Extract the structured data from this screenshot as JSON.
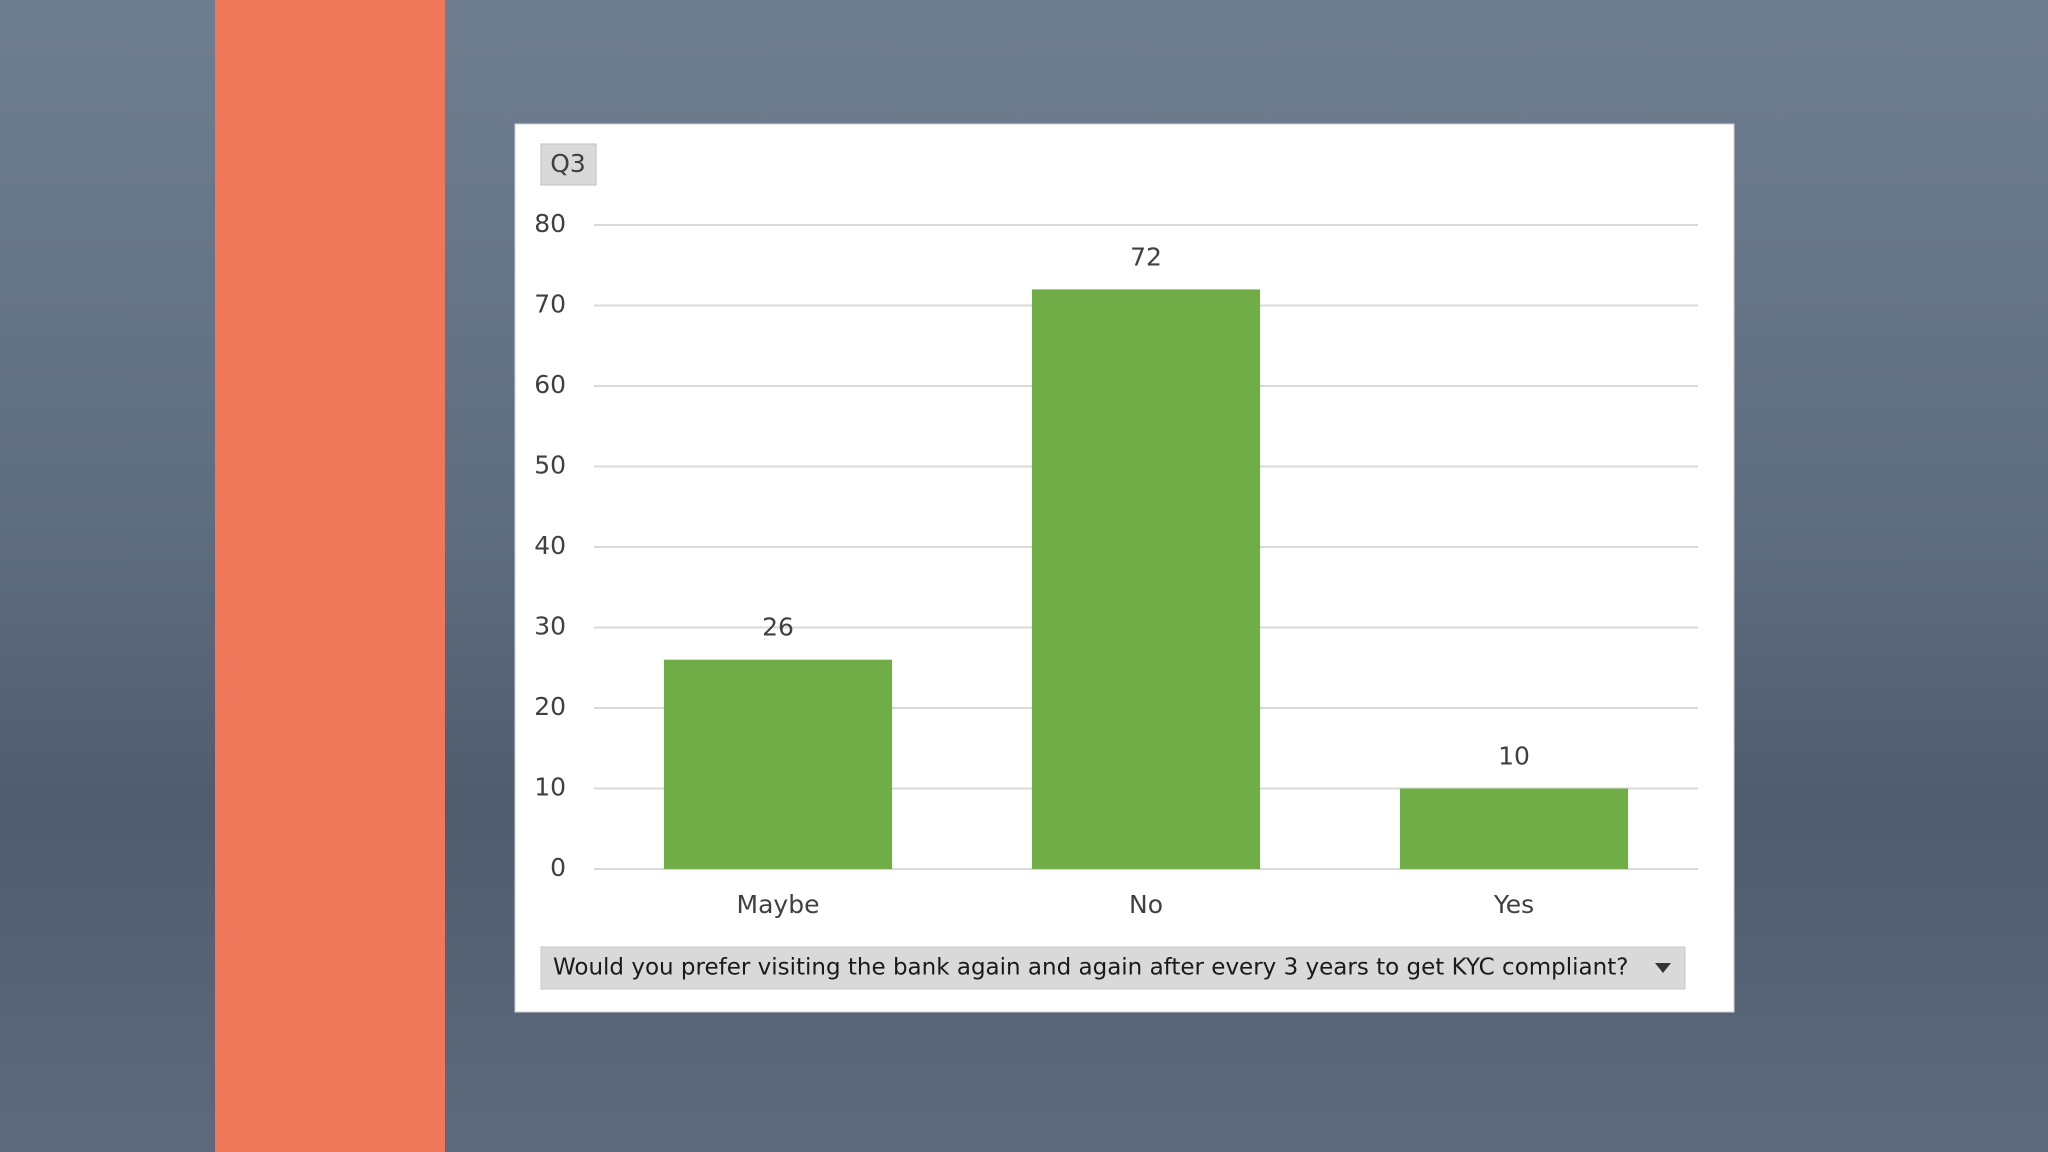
{
  "chart_data": {
    "type": "bar",
    "field_button": "Q3",
    "axis_field": "Would you prefer visiting the bank again and again after  every 3 years to get KYC compliant?",
    "categories": [
      "Maybe",
      "No",
      "Yes"
    ],
    "values": [
      26,
      72,
      10
    ],
    "color": "#70ad47",
    "ylim": [
      0,
      80
    ],
    "yticks": [
      0,
      10,
      20,
      30,
      40,
      50,
      60,
      70,
      80
    ],
    "grid": true
  }
}
